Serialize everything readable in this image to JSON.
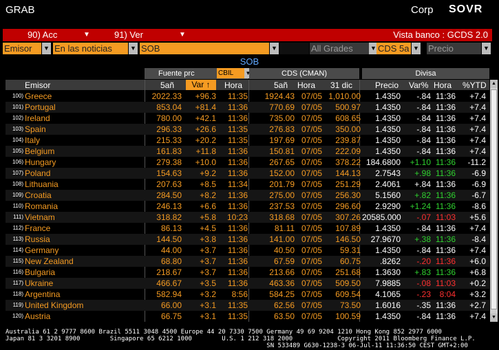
{
  "titlebar": {
    "function": "GRAB",
    "market": "Corp",
    "brand": "SOVR"
  },
  "menu": {
    "acc": "90) Acc",
    "ver": "91) Ver",
    "vista": "Vista banco : GCDS 2.0"
  },
  "filters": {
    "emisor": "Emisor",
    "noticias": "En las noticias",
    "sob": "SOB",
    "grades": "All Grades",
    "cds": "CDS 5a",
    "precio": "Precio"
  },
  "subtitle": "SOB",
  "groups": {
    "fuente": "Fuente prc",
    "cbil": "CBIL",
    "cds": "CDS (CMAN)",
    "divisa": "Divisa"
  },
  "columns": {
    "emisor": "Emisor",
    "s5": "5añ",
    "var": "Var",
    "hora": "Hora",
    "c5": "5añ",
    "chora": "Hora",
    "dic": "31 dic",
    "precio": "Precio",
    "varp": "Var%",
    "dhora": "Hora",
    "ytd": "%YTD"
  },
  "rows": [
    {
      "n": "100)",
      "name": "Greece",
      "s5": "2022.33",
      "var": "+96.3",
      "hora": "11:35",
      "c5": "1924.43",
      "chora": "07/05",
      "dic": "1,010.00",
      "precio": "1.4350",
      "varp": "-.84",
      "dhora": "11:36",
      "ytd": "+7.4",
      "vc": "wh",
      "yc": "wh"
    },
    {
      "n": "101)",
      "name": "Portugal",
      "s5": "853.04",
      "var": "+81.4",
      "hora": "11:36",
      "c5": "770.69",
      "chora": "07/05",
      "dic": "500.97",
      "precio": "1.4350",
      "varp": "-.84",
      "dhora": "11:36",
      "ytd": "+7.4",
      "vc": "wh",
      "yc": "wh"
    },
    {
      "n": "102)",
      "name": "Ireland",
      "s5": "780.00",
      "var": "+42.1",
      "hora": "11:36",
      "c5": "735.00",
      "chora": "07/05",
      "dic": "608.65",
      "precio": "1.4350",
      "varp": "-.84",
      "dhora": "11:36",
      "ytd": "+7.4",
      "vc": "wh",
      "yc": "wh"
    },
    {
      "n": "103)",
      "name": "Spain",
      "s5": "296.33",
      "var": "+26.6",
      "hora": "11:35",
      "c5": "276.83",
      "chora": "07/05",
      "dic": "350.00",
      "precio": "1.4350",
      "varp": "-.84",
      "dhora": "11:36",
      "ytd": "+7.4",
      "vc": "wh",
      "yc": "wh"
    },
    {
      "n": "104)",
      "name": "Italy",
      "s5": "215.33",
      "var": "+20.2",
      "hora": "11:35",
      "c5": "197.69",
      "chora": "07/05",
      "dic": "239.87",
      "precio": "1.4350",
      "varp": "-.84",
      "dhora": "11:36",
      "ytd": "+7.4",
      "vc": "wh",
      "yc": "wh"
    },
    {
      "n": "105)",
      "name": "Belgium",
      "s5": "161.83",
      "var": "+11.8",
      "hora": "11:36",
      "c5": "150.81",
      "chora": "07/05",
      "dic": "222.09",
      "precio": "1.4350",
      "varp": "-.84",
      "dhora": "11:36",
      "ytd": "+7.4",
      "vc": "wh",
      "yc": "wh"
    },
    {
      "n": "106)",
      "name": "Hungary",
      "s5": "279.38",
      "var": "+10.0",
      "hora": "11:36",
      "c5": "267.65",
      "chora": "07/05",
      "dic": "378.22",
      "precio": "184.6800",
      "varp": "+1.10",
      "dhora": "11:36",
      "ytd": "-11.2",
      "vc": "gr",
      "yc": "wh"
    },
    {
      "n": "107)",
      "name": "Poland",
      "s5": "154.63",
      "var": "+9.2",
      "hora": "11:36",
      "c5": "152.00",
      "chora": "07/05",
      "dic": "144.13",
      "precio": "2.7543",
      "varp": "+.98",
      "dhora": "11:36",
      "ytd": "-6.9",
      "vc": "gr",
      "yc": "wh"
    },
    {
      "n": "108)",
      "name": "Lithuania",
      "s5": "207.63",
      "var": "+8.5",
      "hora": "11:34",
      "c5": "201.79",
      "chora": "07/05",
      "dic": "251.29",
      "precio": "2.4061",
      "varp": "+.84",
      "dhora": "11:36",
      "ytd": "-6.9",
      "vc": "wh",
      "yc": "wh"
    },
    {
      "n": "109)",
      "name": "Croatia",
      "s5": "284.50",
      "var": "+8.2",
      "hora": "11:36",
      "c5": "275.00",
      "chora": "07/05",
      "dic": "256.30",
      "precio": "5.1560",
      "varp": "+.82",
      "dhora": "11:36",
      "ytd": "-6.7",
      "vc": "gr",
      "yc": "wh"
    },
    {
      "n": "110)",
      "name": "Romania",
      "s5": "246.13",
      "var": "+6.6",
      "hora": "11:36",
      "c5": "237.53",
      "chora": "07/05",
      "dic": "296.60",
      "precio": "2.9290",
      "varp": "+1.24",
      "dhora": "11:36",
      "ytd": "-8.6",
      "vc": "gr",
      "yc": "wh"
    },
    {
      "n": "111)",
      "name": "Vietnam",
      "s5": "318.82",
      "var": "+5.8",
      "hora": "10:23",
      "c5": "318.68",
      "chora": "07/05",
      "dic": "307.26",
      "precio": "20585.000",
      "varp": "-.07",
      "dhora": "11:03",
      "ytd": "+5.6",
      "vc": "rd",
      "yc": "wh"
    },
    {
      "n": "112)",
      "name": "France",
      "s5": "86.13",
      "var": "+4.5",
      "hora": "11:36",
      "c5": "81.11",
      "chora": "07/05",
      "dic": "107.89",
      "precio": "1.4350",
      "varp": "-.84",
      "dhora": "11:36",
      "ytd": "+7.4",
      "vc": "wh",
      "yc": "wh"
    },
    {
      "n": "113)",
      "name": "Russia",
      "s5": "144.50",
      "var": "+3.8",
      "hora": "11:36",
      "c5": "141.00",
      "chora": "07/05",
      "dic": "146.50",
      "precio": "27.9670",
      "varp": "+.38",
      "dhora": "11:36",
      "ytd": "-8.4",
      "vc": "gr",
      "yc": "wh"
    },
    {
      "n": "114)",
      "name": "Germany",
      "s5": "44.00",
      "var": "+3.7",
      "hora": "11:36",
      "c5": "40.50",
      "chora": "07/05",
      "dic": "59.31",
      "precio": "1.4350",
      "varp": "-.84",
      "dhora": "11:36",
      "ytd": "+7.4",
      "vc": "wh",
      "yc": "wh"
    },
    {
      "n": "115)",
      "name": "New Zealand",
      "s5": "68.80",
      "var": "+3.7",
      "hora": "11:36",
      "c5": "67.59",
      "chora": "07/05",
      "dic": "60.75",
      "precio": ".8262",
      "varp": "-.20",
      "dhora": "11:36",
      "ytd": "+6.0",
      "vc": "rd",
      "yc": "wh"
    },
    {
      "n": "116)",
      "name": "Bulgaria",
      "s5": "218.67",
      "var": "+3.7",
      "hora": "11:36",
      "c5": "213.66",
      "chora": "07/05",
      "dic": "251.68",
      "precio": "1.3630",
      "varp": "+.83",
      "dhora": "11:36",
      "ytd": "+6.8",
      "vc": "gr",
      "yc": "wh"
    },
    {
      "n": "117)",
      "name": "Ukraine",
      "s5": "466.67",
      "var": "+3.5",
      "hora": "11:36",
      "c5": "463.36",
      "chora": "07/05",
      "dic": "509.50",
      "precio": "7.9885",
      "varp": "-.08",
      "dhora": "11:03",
      "ytd": "+0.2",
      "vc": "rd",
      "yc": "wh"
    },
    {
      "n": "118)",
      "name": "Argentina",
      "s5": "582.94",
      "var": "+3.2",
      "hora": "8:56",
      "c5": "584.25",
      "chora": "07/05",
      "dic": "609.54",
      "precio": "4.1065",
      "varp": "-.23",
      "dhora": "8:04",
      "ytd": "+3.2",
      "vc": "rd",
      "yc": "wh"
    },
    {
      "n": "119)",
      "name": "United Kingdom",
      "s5": "66.00",
      "var": "+3.1",
      "hora": "11:35",
      "c5": "62.56",
      "chora": "07/05",
      "dic": "73.50",
      "precio": "1.6016",
      "varp": "-.35",
      "dhora": "11:36",
      "ytd": "+2.7",
      "vc": "wh",
      "yc": "wh"
    },
    {
      "n": "120)",
      "name": "Austria",
      "s5": "66.75",
      "var": "+3.1",
      "hora": "11:35",
      "c5": "63.50",
      "chora": "07/05",
      "dic": "100.59",
      "precio": "1.4350",
      "varp": "-.84",
      "dhora": "11:36",
      "ytd": "+7.4",
      "vc": "wh",
      "yc": "wh"
    }
  ],
  "footer": {
    "line1": "Australia 61 2 9777 8600 Brazil 5511 3048 4500 Europe 44 20 7330 7500 Germany 49 69 9204 1210 Hong Kong 852 2977 6000",
    "line2": "Japan 81 3 3201 8900        Singapore 65 6212 1000        U.S. 1 212 318 2000            Copyright 2011 Bloomberg Finance L.P.",
    "line3": "                                                                      SN 533489 G630-1238-3 06-Jul-11 11:36:50 CEST GMT+2:00"
  },
  "colors": {
    "orange": "#f59b22",
    "red": "#c00000",
    "green": "#2fd22f",
    "blue": "#5fa8ff"
  }
}
